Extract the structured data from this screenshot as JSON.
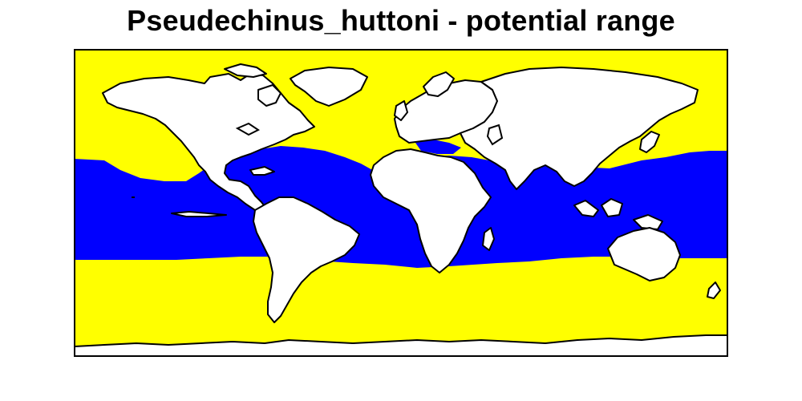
{
  "title": "Pseudechinus_huttoni - potential range",
  "colors": {
    "ocean_outside_range": "#ffff00",
    "potential_range": "#0000ff",
    "land": "#ffffff",
    "outline": "#000000"
  }
}
